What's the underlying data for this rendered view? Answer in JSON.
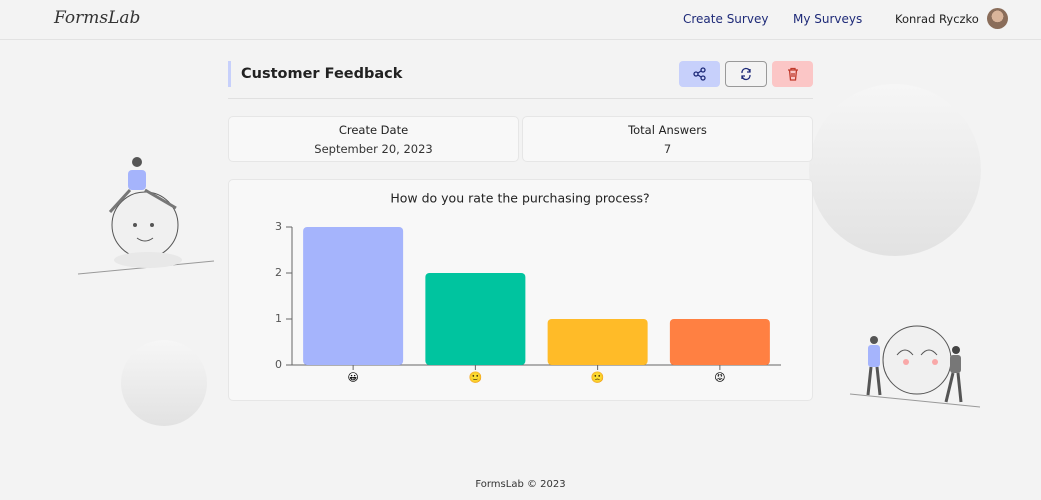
{
  "header": {
    "brand": "FormsLab",
    "nav": [
      "Create Survey",
      "My Surveys"
    ],
    "user": "Konrad Ryczko"
  },
  "survey": {
    "title": "Customer Feedback",
    "stats": [
      {
        "label": "Create Date",
        "value": "September 20, 2023"
      },
      {
        "label": "Total Answers",
        "value": 7
      }
    ]
  },
  "chart_data": {
    "type": "bar",
    "title": "How do you rate the purchasing process?",
    "categories": [
      "😀",
      "🙂",
      "🙁",
      "😡"
    ],
    "values": [
      3,
      2,
      1,
      1
    ],
    "colors": [
      "#a5b4fc",
      "#00c49f",
      "#ffbb28",
      "#ff8042"
    ],
    "ylim": [
      0,
      3
    ],
    "yticks": [
      0,
      1,
      2,
      3
    ]
  },
  "footer": "FormsLab © 2023"
}
